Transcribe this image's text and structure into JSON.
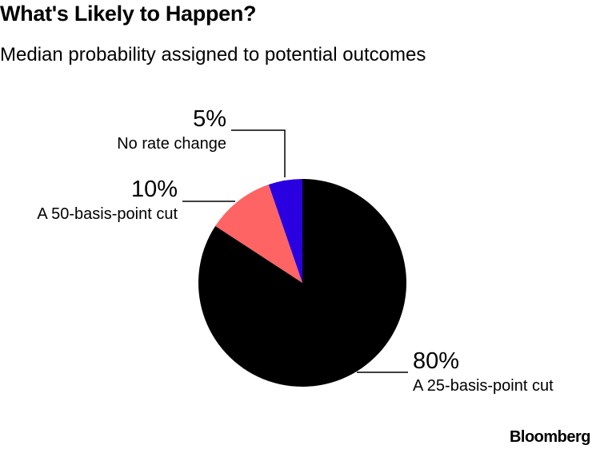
{
  "title": "What's Likely to Happen?",
  "subtitle": "Median probability assigned to potential outcomes",
  "source": "Bloomberg",
  "chart_data": {
    "type": "pie",
    "title": "What's Likely to Happen?",
    "subtitle": "Median probability assigned to potential outcomes",
    "slices": [
      {
        "label": "A 25-basis-point cut",
        "value": 80,
        "display": "80%",
        "color": "#000000"
      },
      {
        "label": "A 50-basis-point cut",
        "value": 10,
        "display": "10%",
        "color": "#ff6464"
      },
      {
        "label": "No rate change",
        "value": 5,
        "display": "5%",
        "color": "#2a00e0"
      }
    ],
    "legend": "none",
    "grid": false
  }
}
